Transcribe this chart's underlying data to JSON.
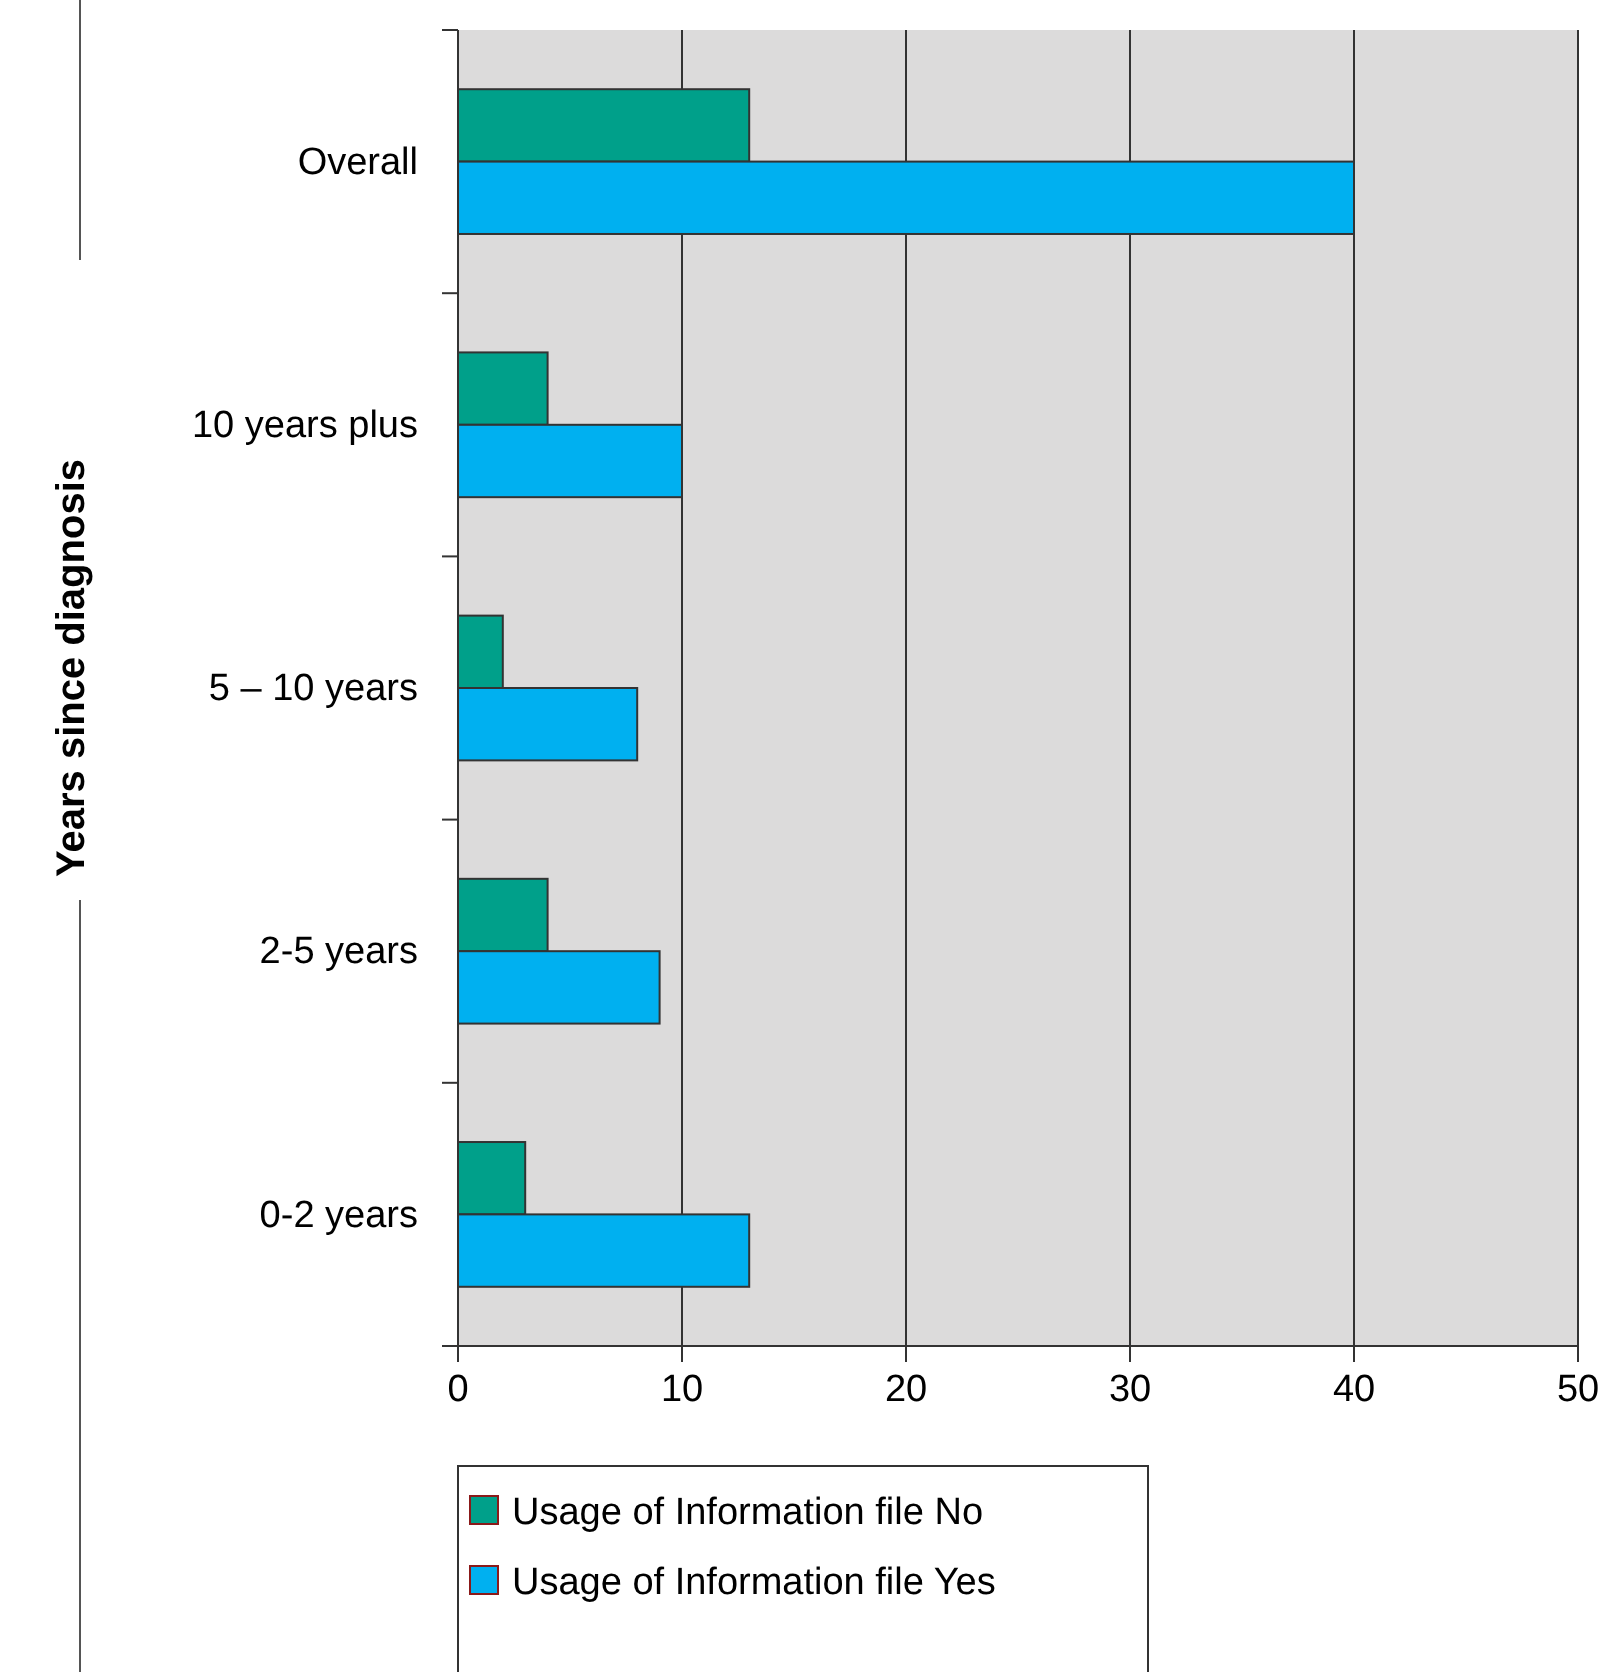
{
  "chart_data": {
    "type": "bar",
    "orientation": "horizontal",
    "ylabel": "Years since diagnosis",
    "categories": [
      "Overall",
      "10 years plus",
      "5 – 10 years",
      "2-5 years",
      "0-2 years"
    ],
    "series": [
      {
        "name": "Usage of Information file No",
        "color": "#00a08a",
        "values": [
          13,
          4,
          2,
          4,
          3
        ]
      },
      {
        "name": "Usage of Information file Yes",
        "color": "#00b0f0",
        "values": [
          40,
          10,
          8,
          9,
          13
        ]
      }
    ],
    "xlim": [
      0,
      50
    ],
    "xticks": [
      0,
      10,
      20,
      30,
      40,
      50
    ],
    "grid": "x",
    "legend": "bottom"
  }
}
